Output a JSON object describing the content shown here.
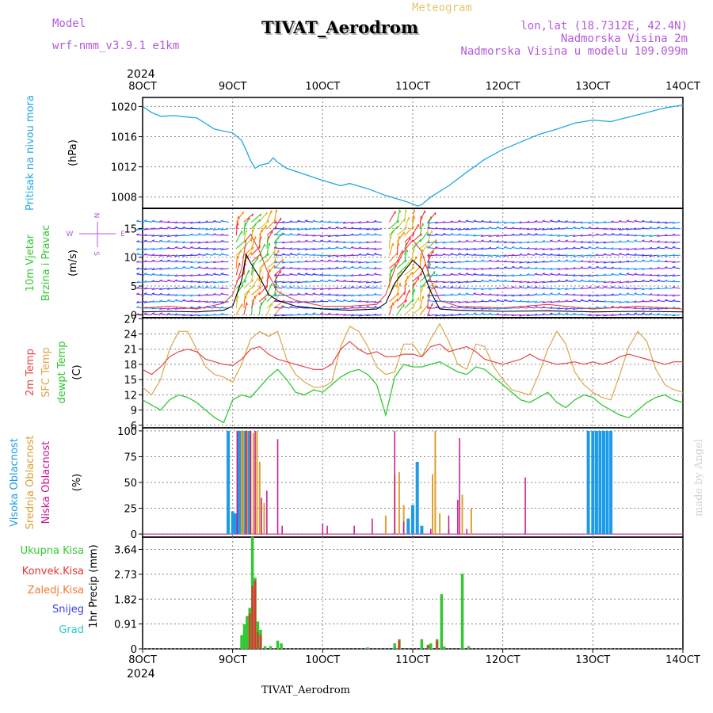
{
  "header": {
    "model_label": "Model",
    "model_name": "wrf-nmm_v3.9.1  e1km",
    "product": "Meteogram",
    "station": "TIVAT_Aerodrom",
    "coords": "lon,lat (18.7312E, 42.4N)",
    "elevation": "Nadmorska Visina 2m",
    "model_elevation": "Nadmorska Visina u modelu 109.099m",
    "credit": "made by Angel",
    "footer_station": "TIVAT_Aerodrom",
    "year_top": "2024",
    "year_bottom": "2024"
  },
  "colors": {
    "pressure": "#1ea9e6",
    "temp2m": "#e64646",
    "sfc_temp": "#dca64a",
    "dewpt": "#32c832",
    "high_cloud": "#1e9be6",
    "mid_cloud": "#dca032",
    "low_cloud": "#c8148c",
    "total_precip": "#32c832",
    "conv_precip": "#e63232",
    "frozen_precip": "#f07832",
    "snow": "#3c3ce6",
    "hail": "#28c8c8"
  },
  "time_axis": {
    "labels": [
      "8OCT",
      "9OCT",
      "10OCT",
      "11OCT",
      "12OCT",
      "13OCT",
      "14OCT"
    ]
  },
  "wind_compass": {
    "n": "N",
    "s": "S",
    "w": "W",
    "e": "E"
  },
  "chart_data": [
    {
      "type": "line",
      "id": "pressure",
      "ylabel_main": "Pritisak na nivou mora",
      "ylabel_unit": "(hPa)",
      "yticks": [
        1008,
        1012,
        1016,
        1020
      ],
      "ylim": [
        1006.5,
        1021.2
      ],
      "grid": true,
      "x": [
        0,
        0.1,
        0.2,
        0.35,
        0.5,
        0.6,
        0.8,
        1.0,
        1.1,
        1.15,
        1.2,
        1.25,
        1.3,
        1.4,
        1.45,
        1.5,
        1.6,
        1.8,
        2.0,
        2.2,
        2.3,
        2.5,
        2.7,
        2.9,
        3.0,
        3.05,
        3.1,
        3.2,
        3.4,
        3.6,
        3.8,
        4.0,
        4.2,
        4.4,
        4.6,
        4.8,
        5.0,
        5.2,
        5.4,
        5.6,
        5.8,
        6.0
      ],
      "series": [
        {
          "values": [
            1020.0,
            1019.2,
            1018.7,
            1018.8,
            1018.6,
            1018.5,
            1017.0,
            1016.5,
            1015.5,
            1014.2,
            1012.8,
            1011.8,
            1012.2,
            1012.5,
            1013.2,
            1012.6,
            1011.8,
            1011.0,
            1010.2,
            1009.5,
            1009.8,
            1009.1,
            1008.2,
            1007.5,
            1007.1,
            1006.8,
            1007.0,
            1008.0,
            1009.5,
            1011.3,
            1013.0,
            1014.3,
            1015.3,
            1016.3,
            1017.0,
            1017.8,
            1018.2,
            1018.0,
            1018.6,
            1019.2,
            1019.8,
            1020.2
          ]
        }
      ]
    },
    {
      "type": "line",
      "id": "wind",
      "ylabel_main": "10m Vjetar",
      "ylabel_sub": "Brzina i Pravac",
      "ylabel_unit": "(m/s)",
      "yticks": [
        0,
        5,
        10,
        15
      ],
      "ylim": [
        -0.5,
        18.5
      ],
      "grid": true,
      "x": [
        0,
        0.3,
        0.6,
        0.9,
        1.0,
        1.1,
        1.15,
        1.2,
        1.3,
        1.4,
        1.5,
        1.7,
        2.0,
        2.3,
        2.6,
        2.7,
        2.8,
        2.9,
        3.0,
        3.1,
        3.2,
        3.3,
        3.5,
        4.0,
        4.5,
        5.0,
        5.5,
        6.0
      ],
      "series": [
        {
          "values": [
            0.5,
            0.6,
            0.5,
            0.8,
            1.5,
            6.0,
            10.5,
            9.0,
            6.5,
            3.5,
            2.5,
            1.5,
            1.0,
            0.8,
            1.0,
            2.0,
            5.5,
            7.5,
            9.5,
            8.0,
            4.0,
            1.0,
            0.8,
            0.6,
            0.7,
            0.5,
            0.6,
            0.5
          ]
        },
        {
          "values": [
            1.2,
            1.5,
            1.0,
            2.0,
            3.5,
            8.0,
            13.0,
            14.0,
            11.0,
            7.0,
            4.0,
            2.5,
            1.5,
            1.5,
            1.8,
            3.5,
            8.0,
            11.0,
            13.0,
            11.0,
            6.0,
            2.5,
            1.5,
            1.2,
            1.8,
            1.0,
            1.5,
            1.0
          ]
        }
      ]
    },
    {
      "type": "line",
      "id": "temperature",
      "ylabel_main": "2m Temp",
      "ylabel_sub": "SFC Temp",
      "ylabel_sub2": "dewpt Temp",
      "ylabel_unit": "(C)",
      "yticks": [
        6,
        9,
        12,
        15,
        18,
        21,
        24,
        27
      ],
      "ylim": [
        5.5,
        27.2
      ],
      "grid": true,
      "x": [
        0,
        0.1,
        0.2,
        0.3,
        0.4,
        0.5,
        0.6,
        0.7,
        0.8,
        0.9,
        1.0,
        1.1,
        1.2,
        1.3,
        1.4,
        1.5,
        1.6,
        1.7,
        1.8,
        1.9,
        2.0,
        2.1,
        2.2,
        2.3,
        2.4,
        2.5,
        2.6,
        2.7,
        2.8,
        2.9,
        3.0,
        3.1,
        3.2,
        3.3,
        3.4,
        3.5,
        3.6,
        3.7,
        3.8,
        3.9,
        4.0,
        4.1,
        4.2,
        4.3,
        4.4,
        4.5,
        4.6,
        4.7,
        4.8,
        4.9,
        5.0,
        5.1,
        5.2,
        5.3,
        5.4,
        5.5,
        5.6,
        5.7,
        5.8,
        5.9,
        6.0
      ],
      "series": [
        {
          "values": [
            17.0,
            16.0,
            17.5,
            19.5,
            20.5,
            21.0,
            20.5,
            19.0,
            18.5,
            18.0,
            17.8,
            19.0,
            21.0,
            21.5,
            20.0,
            19.0,
            18.5,
            18.0,
            17.5,
            17.0,
            17.0,
            18.0,
            21.0,
            22.5,
            21.0,
            20.0,
            20.5,
            19.5,
            19.5,
            20.0,
            20.0,
            19.5,
            21.5,
            22.0,
            20.5,
            21.0,
            21.5,
            20.5,
            19.0,
            18.5,
            18.0,
            18.5,
            19.0,
            20.0,
            19.0,
            18.5,
            18.0,
            18.2,
            18.5,
            18.0,
            18.5,
            18.0,
            18.5,
            19.5,
            20.0,
            19.5,
            19.0,
            18.5,
            18.0,
            18.5,
            18.5
          ]
        },
        {
          "values": [
            13.5,
            12.0,
            15.0,
            21.0,
            24.5,
            24.5,
            21.0,
            17.5,
            16.0,
            15.5,
            14.5,
            18.0,
            23.0,
            24.5,
            23.5,
            24.5,
            19.0,
            16.0,
            14.5,
            13.5,
            13.5,
            14.5,
            21.5,
            25.5,
            24.5,
            21.5,
            17.5,
            16.0,
            16.5,
            22.0,
            22.0,
            19.5,
            23.0,
            26.0,
            22.5,
            18.0,
            17.0,
            22.0,
            21.5,
            17.5,
            15.0,
            13.0,
            12.5,
            12.0,
            16.0,
            21.0,
            24.5,
            22.0,
            16.5,
            14.0,
            12.5,
            11.5,
            11.0,
            16.0,
            21.5,
            24.5,
            22.5,
            17.0,
            14.0,
            13.0,
            12.5
          ]
        },
        {
          "values": [
            11.0,
            10.0,
            9.0,
            11.0,
            12.0,
            11.5,
            10.5,
            9.0,
            7.5,
            6.5,
            11.0,
            12.0,
            11.5,
            13.5,
            15.5,
            17.0,
            15.0,
            12.5,
            12.0,
            13.0,
            12.5,
            14.0,
            15.5,
            16.5,
            17.0,
            16.0,
            14.0,
            8.0,
            15.5,
            18.0,
            17.5,
            17.5,
            18.0,
            18.5,
            17.5,
            16.5,
            16.0,
            17.5,
            17.0,
            15.5,
            14.0,
            12.5,
            11.0,
            10.5,
            11.5,
            12.5,
            10.5,
            9.5,
            11.0,
            12.0,
            11.5,
            10.0,
            9.0,
            8.0,
            7.5,
            9.0,
            10.5,
            11.5,
            12.0,
            11.0,
            10.5
          ]
        }
      ]
    },
    {
      "type": "bar",
      "id": "cloud",
      "ylabel_main": "Visoka Oblacnost",
      "ylabel_sub": "Srednja Oblacnost",
      "ylabel_sub2": "Niska Oblacnost",
      "ylabel_unit": "(%)",
      "yticks": [
        0,
        25,
        50,
        75,
        100
      ],
      "ylim": [
        -3,
        103
      ],
      "grid": true,
      "series": [
        {
          "name": "Visoka Oblacnost",
          "x": [
            0.95,
            1.0,
            1.03,
            1.07,
            1.1,
            1.14,
            1.18,
            2.95,
            3.0,
            3.05,
            3.1,
            4.95,
            5.0,
            5.04,
            5.08,
            5.12,
            5.16,
            5.2
          ],
          "values": [
            100,
            22,
            20,
            100,
            100,
            100,
            100,
            15,
            28,
            70,
            8,
            100,
            100,
            100,
            100,
            100,
            100,
            100
          ]
        },
        {
          "name": "Srednja Oblacnost",
          "x": [
            1.1,
            1.12,
            1.16,
            1.2,
            1.23,
            1.27,
            1.3,
            1.35,
            2.7,
            2.8,
            2.85,
            2.9,
            3.22,
            3.25,
            3.3,
            3.4,
            3.55,
            3.65
          ],
          "values": [
            100,
            100,
            100,
            100,
            98,
            100,
            70,
            30,
            18,
            58,
            60,
            28,
            58,
            100,
            20,
            5,
            38,
            25
          ]
        },
        {
          "name": "Niska Oblacnost",
          "x": [
            1.05,
            1.15,
            1.2,
            1.25,
            1.32,
            1.38,
            1.5,
            1.55,
            2.0,
            2.05,
            2.35,
            2.55,
            2.8,
            2.9,
            3.2,
            3.4,
            3.5,
            3.52,
            3.6,
            4.25
          ],
          "values": [
            100,
            100,
            100,
            100,
            35,
            42,
            92,
            8,
            10,
            8,
            8,
            15,
            100,
            12,
            5,
            18,
            33,
            93,
            5,
            55
          ]
        }
      ]
    },
    {
      "type": "bar",
      "id": "precip",
      "ylabel_main": "1hr Precip",
      "ylabel_unit": "(mm)",
      "legend": [
        "Ukupna  Kisa",
        "Konvek.Kisa",
        "Zaledj.Kisa",
        "Snijeg",
        "Grad"
      ],
      "yticks": [
        0,
        0.91,
        1.82,
        2.73,
        3.64
      ],
      "ylim": [
        0,
        4.09
      ],
      "grid": true,
      "series": [
        {
          "name": "Ukupna  Kisa",
          "x": [
            1.1,
            1.13,
            1.16,
            1.19,
            1.22,
            1.25,
            1.28,
            1.31,
            1.36,
            1.42,
            1.5,
            1.54,
            2.5,
            2.8,
            2.85,
            3.1,
            3.17,
            3.2,
            3.27,
            3.32,
            3.35,
            3.55,
            3.62
          ],
          "values": [
            0.5,
            0.9,
            1.2,
            1.5,
            4.1,
            2.6,
            1.0,
            0.7,
            0.1,
            0.1,
            0.3,
            0.2,
            0.05,
            0.2,
            0.35,
            0.35,
            0.15,
            0.2,
            0.35,
            2.0,
            0.08,
            2.75,
            0.1
          ]
        },
        {
          "name": "Konvek.Kisa",
          "x": [
            1.19,
            1.22,
            1.25,
            1.28,
            1.31,
            2.85,
            3.17,
            3.27
          ],
          "values": [
            1.3,
            2.3,
            2.5,
            0.6,
            0.5,
            0.3,
            0.12,
            0.3
          ]
        }
      ]
    }
  ]
}
